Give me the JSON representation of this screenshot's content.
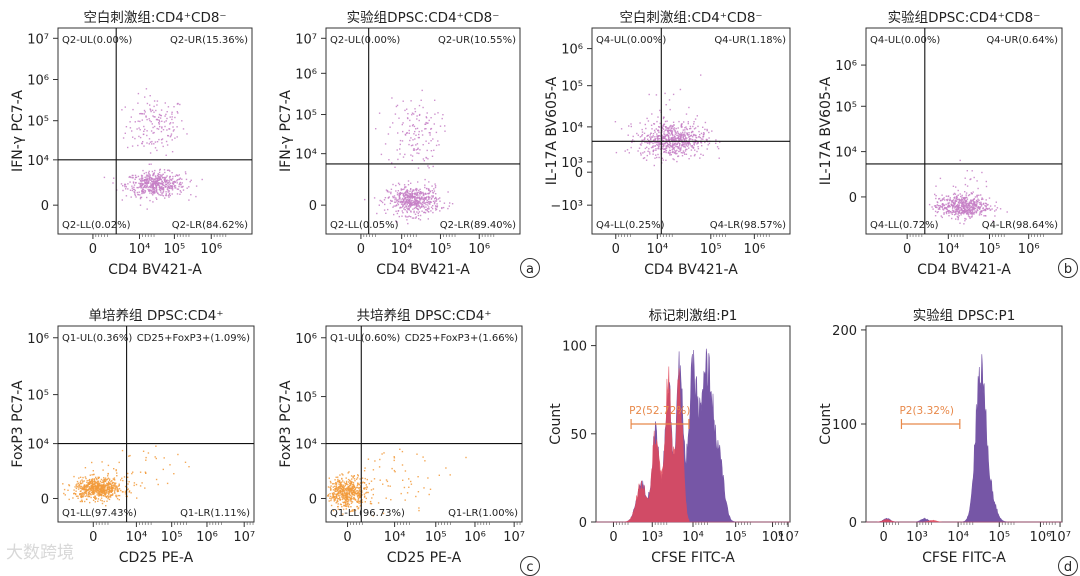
{
  "chart_data": [
    {
      "id": "a1",
      "type": "scatter",
      "title": "空白刺激组:CD4⁺CD8⁻",
      "xlabel": "CD4 BV421-A",
      "ylabel": "IFN-γ PC7-A",
      "xticks": [
        "0",
        "10⁴",
        "10⁵",
        "10⁶"
      ],
      "yticks": [
        "0",
        "10⁴",
        "10⁵",
        "10⁶",
        "10⁷"
      ],
      "quadrants": {
        "UL": "Q2-UL(0.00%)",
        "UR": "Q2-UR(15.36%)",
        "LL": "Q2-LL(0.02%)",
        "LR": "Q2-LR(84.62%)"
      },
      "color": "#c57fc5",
      "clusters": [
        {
          "x": 4.4,
          "y": 3.25,
          "count": 160,
          "sx": 0.38,
          "sy": 0.6,
          "min_y": 0.8
        },
        {
          "x": 4.4,
          "y": 0.85,
          "count": 520,
          "sx": 0.38,
          "sy": 0.25
        }
      ]
    },
    {
      "id": "a2",
      "type": "scatter",
      "title": "实验组DPSC:CD4⁺CD8⁻",
      "xlabel": "CD4 BV421-A",
      "ylabel": "IFN-γ PC7-A",
      "xticks": [
        "0",
        "10⁴",
        "10⁵",
        "10⁶"
      ],
      "yticks": [
        "0",
        "10⁴",
        "10⁵",
        "10⁶",
        "10⁷"
      ],
      "quadrants": {
        "UL": "Q2-UL(0.00%)",
        "UR": "Q2-UR(10.55%)",
        "LL": "Q2-LL(0.05%)",
        "LR": "Q2-LR(89.40%)"
      },
      "color": "#c57fc5",
      "clusters": [
        {
          "x": 4.3,
          "y": 3.2,
          "count": 140,
          "sx": 0.33,
          "sy": 0.75,
          "min_y": 1.3
        },
        {
          "x": 4.3,
          "y": 0.4,
          "count": 520,
          "sx": 0.33,
          "sy": 0.3
        }
      ]
    },
    {
      "id": "a3",
      "type": "scatter",
      "title": "空白刺激组:CD4⁺CD8⁻",
      "xlabel": "CD4 BV421-A",
      "ylabel": "IL-17A BV605-A",
      "xticks": [
        "0",
        "10⁴",
        "10⁵",
        "10⁶"
      ],
      "yticks": [
        "−10³",
        "0",
        "10³",
        "10⁴",
        "10⁵",
        "10⁶"
      ],
      "quadrants": {
        "UL": "Q4-UL(0.00%)",
        "UR": "Q4-UR(1.18%)",
        "LL": "Q4-LL(0.25%)",
        "LR": "Q4-LR(98.57%)"
      },
      "color": "#c57fc5",
      "clusters": [
        {
          "x": 4.3,
          "y": 2.05,
          "count": 650,
          "sx": 0.38,
          "sy": 0.32
        },
        {
          "x": 4.4,
          "y": 3.1,
          "count": 25,
          "sx": 0.35,
          "sy": 0.5
        }
      ]
    },
    {
      "id": "b1",
      "type": "scatter",
      "title": "实验组DPSC:CD4⁺CD8⁻",
      "xlabel": "CD4 BV421-A",
      "ylabel": "IL-17A BV605-A",
      "xticks": [
        "0",
        "10⁴",
        "10⁵",
        "10⁶"
      ],
      "yticks": [
        "0",
        "10⁴",
        "10⁵",
        "10⁶"
      ],
      "quadrants": {
        "UL": "Q4-UL(0.00%)",
        "UR": "Q4-UR(0.64%)",
        "LL": "Q4-LL(0.72%)",
        "LR": "Q4-LR(98.64%)"
      },
      "color": "#c57fc5",
      "clusters": [
        {
          "x": 4.15,
          "y": 0.1,
          "count": 520,
          "sx": 0.33,
          "sy": 0.22
        },
        {
          "x": 4.2,
          "y": 0.9,
          "count": 30,
          "sx": 0.25,
          "sy": 0.4
        }
      ]
    },
    {
      "id": "c1",
      "type": "scatter",
      "title": "单培养组 DPSC:CD4⁺",
      "xlabel": "CD25 PE-A",
      "ylabel": "FoxP3 PC7-A",
      "xticks": [
        "0",
        "10⁴",
        "10⁵",
        "10⁶",
        "10⁷"
      ],
      "yticks": [
        "0",
        "10⁴",
        "10⁵",
        "10⁶"
      ],
      "quadrants": {
        "UL": "Q1-UL(0.36%)",
        "UR": "CD25+FoxP3+(1.09%)",
        "LL": "Q1-LL(97.43%)",
        "LR": "Q1-LR(1.11%)"
      },
      "color": "#f29a3a",
      "clusters": [
        {
          "x": 3.35,
          "y": 0.65,
          "count": 620,
          "sx": 0.32,
          "sy": 0.2
        },
        {
          "x": 4.4,
          "y": 1.2,
          "count": 50,
          "sx": 0.6,
          "sy": 0.5
        }
      ]
    },
    {
      "id": "c2",
      "type": "scatter",
      "title": "共培养组 DPSC:CD4⁺",
      "xlabel": "CD25 PE-A",
      "ylabel": "FoxP3 PC7-A",
      "xticks": [
        "0",
        "10⁴",
        "10⁵",
        "10⁶",
        "10⁷"
      ],
      "yticks": [
        "0",
        "10⁴",
        "10⁵",
        "10⁶"
      ],
      "quadrants": {
        "UL": "Q1-UL(0.60%)",
        "UR": "CD25+FoxP3+(1.66%)",
        "LL": "Q1-LL(96.73%)",
        "LR": "Q1-LR(1.00%)"
      },
      "color": "#f29a3a",
      "clusters": [
        {
          "x": 3.1,
          "y": 0.5,
          "count": 520,
          "sx": 0.25,
          "sy": 0.28
        },
        {
          "x": 4.4,
          "y": 1.1,
          "count": 60,
          "sx": 0.65,
          "sy": 0.5
        }
      ]
    },
    {
      "id": "c3",
      "type": "area",
      "title": "标记刺激组:P1",
      "xlabel": "CFSE FITC-A",
      "ylabel": "Count",
      "xticks": [
        "0",
        "10³",
        "10⁴",
        "10⁵",
        "10⁶",
        "10⁷"
      ],
      "yticks": [
        "0",
        "50",
        "100"
      ],
      "ylim": [
        0,
        110
      ],
      "gate": {
        "label": "P2(52.72%)",
        "from": 3.45,
        "to": 4.85
      },
      "series": [
        {
          "color": "#6f4ea2",
          "peaks": [
            {
              "x": 3.7,
              "h": 22,
              "w": 0.12
            },
            {
              "x": 4.05,
              "h": 52,
              "w": 0.09
            },
            {
              "x": 4.35,
              "h": 80,
              "w": 0.08
            },
            {
              "x": 4.62,
              "h": 90,
              "w": 0.08
            },
            {
              "x": 4.95,
              "h": 84,
              "w": 0.11
            },
            {
              "x": 5.3,
              "h": 90,
              "w": 0.14
            },
            {
              "x": 5.6,
              "h": 30,
              "w": 0.11
            }
          ]
        },
        {
          "color": "#e24a5b",
          "peaks": [
            {
              "x": 3.7,
              "h": 22,
              "w": 0.12
            },
            {
              "x": 4.05,
              "h": 52,
              "w": 0.09
            },
            {
              "x": 4.35,
              "h": 80,
              "w": 0.08
            },
            {
              "x": 4.62,
              "h": 80,
              "w": 0.08
            }
          ],
          "cutoff": 4.85
        }
      ]
    },
    {
      "id": "d1",
      "type": "area",
      "title": "实验组 DPSC:P1",
      "xlabel": "CFSE FITC-A",
      "ylabel": "Count",
      "xticks": [
        "0",
        "10³",
        "10⁴",
        "10⁵",
        "10⁶",
        "10⁷"
      ],
      "yticks": [
        "0",
        "100",
        "200"
      ],
      "ylim": [
        0,
        215
      ],
      "gate": {
        "label": "P2(3.32%)",
        "from": 3.45,
        "to": 4.85
      },
      "series": [
        {
          "color": "#6f4ea2",
          "peaks": [
            {
              "x": 5.35,
              "h": 175,
              "w": 0.12
            },
            {
              "x": 5.6,
              "h": 25,
              "w": 0.12
            },
            {
              "x": 3.1,
              "h": 4,
              "w": 0.08
            },
            {
              "x": 4.0,
              "h": 4,
              "w": 0.08
            }
          ]
        },
        {
          "color": "#e24a5b",
          "peaks": [
            {
              "x": 3.1,
              "h": 3,
              "w": 0.08
            },
            {
              "x": 4.2,
              "h": 2,
              "w": 0.08
            }
          ]
        }
      ]
    }
  ],
  "panel_letters": [
    "a",
    "b",
    "c",
    "d"
  ],
  "watermark": "大数跨境"
}
